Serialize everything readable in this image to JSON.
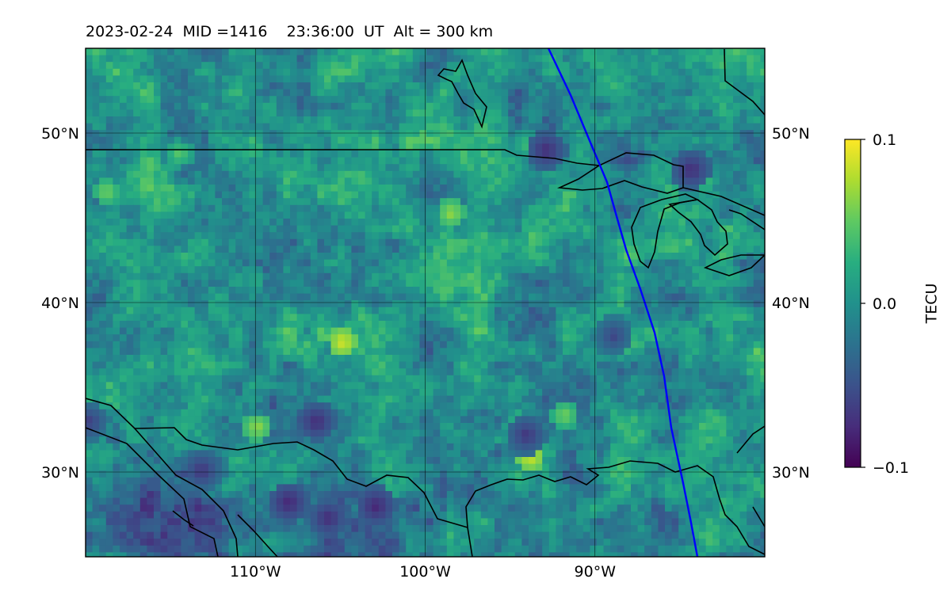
{
  "title": "2023-02-24  MID =1416    23:36:00  UT  Alt = 300 km",
  "map": {
    "lon_range": [
      -120,
      -80
    ],
    "lat_range": [
      25,
      55
    ],
    "lon_ticks": [
      {
        "value": -110,
        "label": "110°W"
      },
      {
        "value": -100,
        "label": "100°W"
      },
      {
        "value": -90,
        "label": "90°W"
      }
    ],
    "lat_ticks": [
      {
        "value": 50,
        "label": "50°N"
      },
      {
        "value": 40,
        "label": "40°N"
      },
      {
        "value": 30,
        "label": "30°N"
      }
    ],
    "gridlines": true,
    "satellite_track_color": "#0000ff",
    "coastline_color": "#000000"
  },
  "colorbar": {
    "label": "TECU",
    "colormap": "viridis",
    "vmin": -0.1,
    "vmax": 0.1,
    "ticks": [
      {
        "value": 0.1,
        "label": "0.1"
      },
      {
        "value": 0.0,
        "label": "0.0"
      },
      {
        "value": -0.1,
        "label": "−0.1"
      }
    ]
  }
}
